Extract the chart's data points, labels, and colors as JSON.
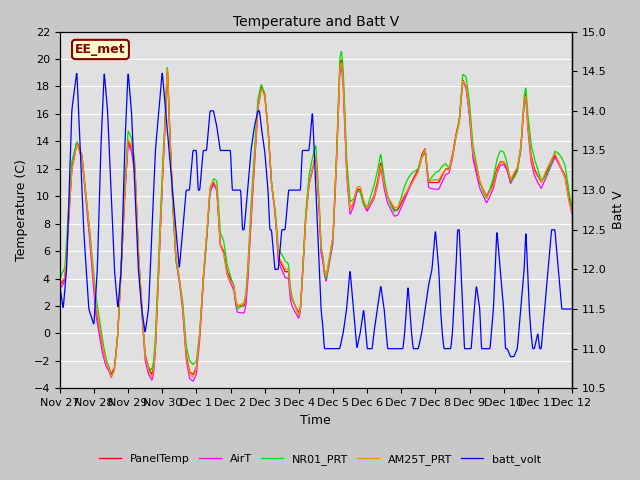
{
  "title": "Temperature and Batt V",
  "xlabel": "Time",
  "ylabel_left": "Temperature (C)",
  "ylabel_right": "Batt V",
  "ylim_left": [
    -4,
    22
  ],
  "ylim_right": [
    10.5,
    15.0
  ],
  "yticks_left": [
    -4,
    -2,
    0,
    2,
    4,
    6,
    8,
    10,
    12,
    14,
    16,
    18,
    20,
    22
  ],
  "yticks_right": [
    10.5,
    11.0,
    11.5,
    12.0,
    12.5,
    13.0,
    13.5,
    14.0,
    14.5,
    15.0
  ],
  "bg_color": "#c8c8c8",
  "plot_bg_color": "#e0e0e0",
  "grid_color": "#ffffff",
  "annotation_text": "EE_met",
  "annotation_fg": "#8b0000",
  "annotation_bg": "#ffffcc",
  "xtick_labels": [
    "Nov 27",
    "Nov 28",
    "Nov 29",
    "Nov 30",
    "Dec 1",
    "Dec 2",
    "Dec 3",
    "Dec 4",
    "Dec 5",
    "Dec 6",
    "Dec 7",
    "Dec 8",
    "Dec 9",
    "Dec 10",
    "Dec 11",
    "Dec 12"
  ],
  "colors": {
    "PanelTemp": "#ff0000",
    "AirT": "#ff00ff",
    "NR01_PRT": "#00dd00",
    "AM25T_PRT": "#ff8800",
    "batt_volt": "#0000ff"
  },
  "lw": 0.9
}
